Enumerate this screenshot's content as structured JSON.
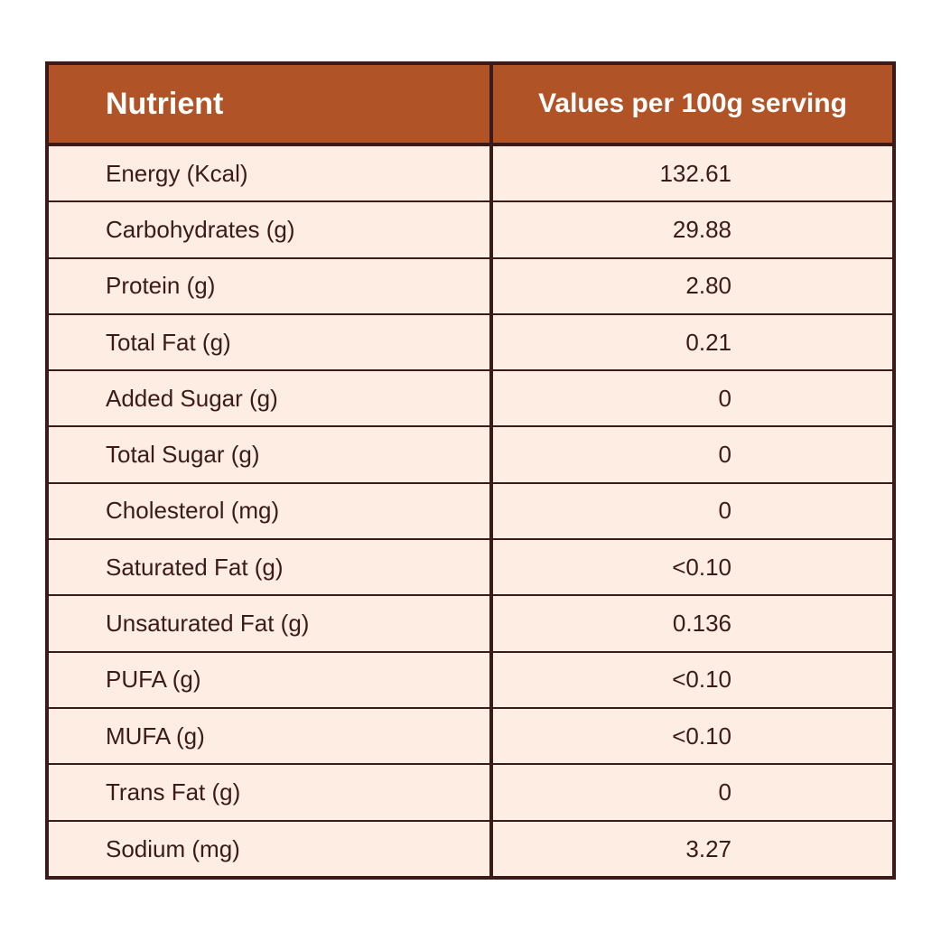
{
  "header": {
    "nutrient_label": "Nutrient",
    "values_label": "Values per 100g serving"
  },
  "rows": [
    {
      "name": "Energy (Kcal)",
      "value": "132.61"
    },
    {
      "name": "Carbohydrates (g)",
      "value": "29.88"
    },
    {
      "name": "Protein (g)",
      "value": "2.80"
    },
    {
      "name": "Total Fat (g)",
      "value": "0.21"
    },
    {
      "name": "Added Sugar (g)",
      "value": "0"
    },
    {
      "name": "Total Sugar (g)",
      "value": "0"
    },
    {
      "name": "Cholesterol (mg)",
      "value": "0"
    },
    {
      "name": "Saturated Fat (g)",
      "value": "<0.10"
    },
    {
      "name": "Unsaturated Fat (g)",
      "value": "0.136"
    },
    {
      "name": "PUFA (g)",
      "value": "<0.10"
    },
    {
      "name": "MUFA (g)",
      "value": "<0.10"
    },
    {
      "name": "Trans Fat (g)",
      "value": "0"
    },
    {
      "name": "Sodium (mg)",
      "value": "3.27"
    }
  ],
  "colors": {
    "header_bg": "#b05428",
    "row_bg": "#fdede3",
    "border": "#3d1a1a",
    "header_text": "#ffffff"
  }
}
